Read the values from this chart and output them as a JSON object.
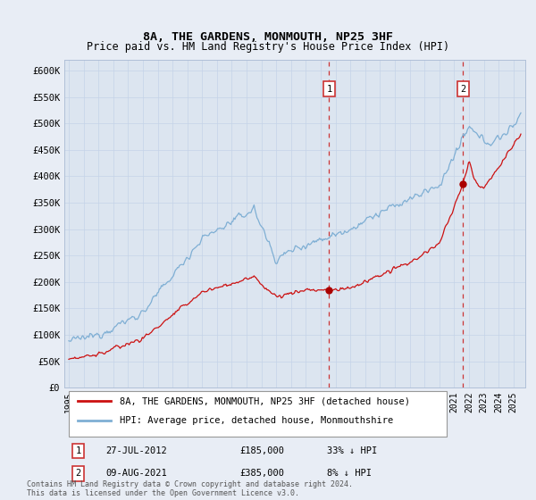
{
  "title": "8A, THE GARDENS, MONMOUTH, NP25 3HF",
  "subtitle": "Price paid vs. HM Land Registry's House Price Index (HPI)",
  "background_color": "#e8edf5",
  "plot_bg_color": "#dce5f0",
  "ylim": [
    0,
    600000
  ],
  "yticks": [
    0,
    50000,
    100000,
    150000,
    200000,
    250000,
    300000,
    350000,
    400000,
    450000,
    500000,
    550000,
    600000
  ],
  "sale1_date": 2012.57,
  "sale1_price": 185000,
  "sale1_label": "1",
  "sale2_date": 2021.61,
  "sale2_price": 385000,
  "sale2_label": "2",
  "legend_entry1": "8A, THE GARDENS, MONMOUTH, NP25 3HF (detached house)",
  "legend_entry2": "HPI: Average price, detached house, Monmouthshire",
  "footer": "Contains HM Land Registry data © Crown copyright and database right 2024.\nThis data is licensed under the Open Government Licence v3.0.",
  "hpi_color": "#7fafd4",
  "price_color": "#cc1111",
  "marker_color": "#aa0000",
  "grid_color": "#c5d3e8",
  "sale_line_color": "#cc3333"
}
